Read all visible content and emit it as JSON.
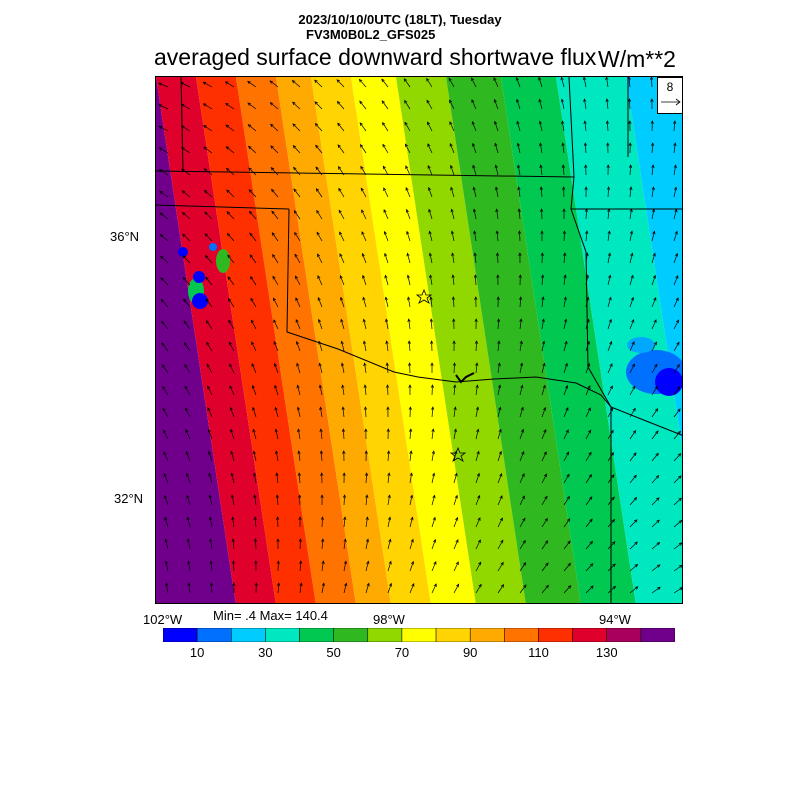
{
  "header": {
    "date_line": "2023/10/10/0UTC (18LT), Tuesday",
    "model_line": "FV3M0B0L2_GFS025",
    "title": "averaged surface downward shortwave flux",
    "units": "W/m**2"
  },
  "axes": {
    "lat_labels": [
      "36°N",
      "32°N"
    ],
    "lon_labels": [
      "102°W",
      "98°W",
      "94°W"
    ]
  },
  "stats": {
    "min_max": "Min= .4 Max= 140.4"
  },
  "reference_vector": {
    "value": "8"
  },
  "colorbar": {
    "colors": [
      "#0000ff",
      "#0070ff",
      "#00ccff",
      "#00e8c0",
      "#00c850",
      "#30b820",
      "#90d800",
      "#ffff00",
      "#ffd400",
      "#ffaa00",
      "#ff7400",
      "#ff3000",
      "#e0002c",
      "#a8005c",
      "#70008c"
    ],
    "tick_labels": [
      "10",
      "30",
      "50",
      "70",
      "90",
      "110",
      "130"
    ]
  },
  "field": {
    "band_colors": [
      "#70008c",
      "#e0002c",
      "#ff3000",
      "#ff7400",
      "#ffaa00",
      "#ffd400",
      "#ffff00",
      "#90d800",
      "#30b820",
      "#00c850",
      "#00e8c0",
      "#00ccff"
    ]
  }
}
